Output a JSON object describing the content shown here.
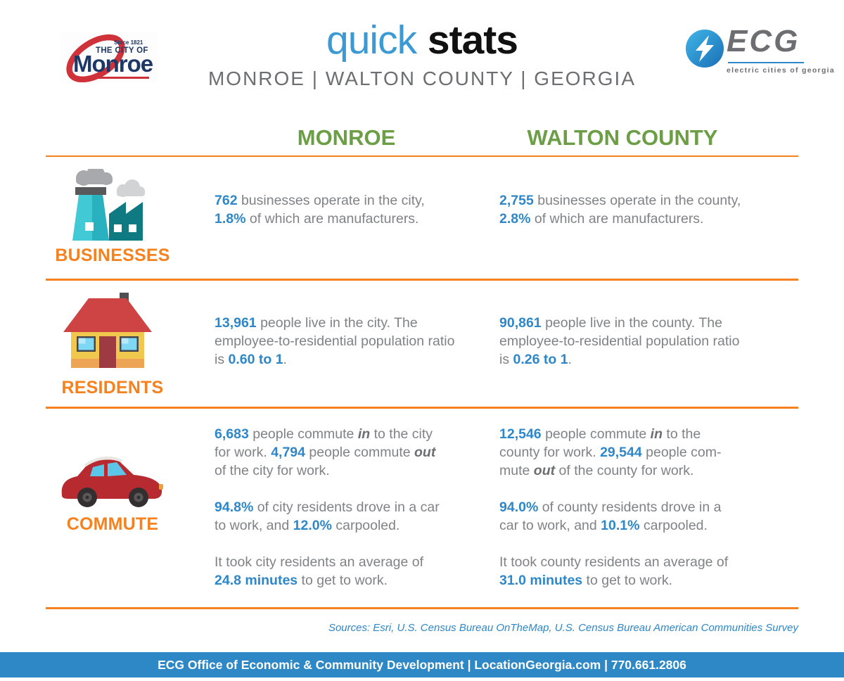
{
  "colors": {
    "accent_blue": "#2e87c8",
    "green": "#6b9e45",
    "orange": "#f5821f",
    "body_gray": "#808285",
    "dark_gray": "#6d6e71",
    "footer_blue": "#2e88c5",
    "title_black": "#111111",
    "monroe_navy": "#1d3866",
    "monroe_red": "#cf3339"
  },
  "header": {
    "monroe_logo": {
      "since": "Since 1821",
      "the_city_of": "THE CITY OF",
      "name": "Monroe",
      "swoosh_icon": "red-swoosh-icon"
    },
    "title": {
      "light": "quick",
      "bold": "stats"
    },
    "subtitle": "MONROE | WALTON COUNTY | GEORGIA",
    "ecg_logo": {
      "name": "ECG",
      "tagline": "electric cities of georgia",
      "bolt_icon": "lightning-bolt-icon"
    }
  },
  "columns": {
    "monroe": "MONROE",
    "walton": "WALTON COUNTY"
  },
  "sections": [
    {
      "label": "BUSINESSES",
      "icon": "factory-icon",
      "monroe": [
        [
          {
            "t": "762",
            "s": "num"
          },
          {
            "t": " businesses operate in the city,",
            "s": "body"
          },
          {
            "s": "br"
          },
          {
            "t": "1.8%",
            "s": "num"
          },
          {
            "t": " of which are manufacturers.",
            "s": "body"
          }
        ]
      ],
      "walton": [
        [
          {
            "t": "2,755",
            "s": "num"
          },
          {
            "t": " businesses operate in the county,",
            "s": "body"
          },
          {
            "s": "br"
          },
          {
            "t": "2.8%",
            "s": "num"
          },
          {
            "t": " of which are manufacturers.",
            "s": "body"
          }
        ]
      ]
    },
    {
      "label": "RESIDENTS",
      "icon": "house-icon",
      "monroe": [
        [
          {
            "t": "13,961",
            "s": "num"
          },
          {
            "t": " people live in the city. The",
            "s": "body"
          },
          {
            "s": "br"
          },
          {
            "t": "employee-to-residential population ratio",
            "s": "body"
          },
          {
            "s": "br"
          },
          {
            "t": "is ",
            "s": "body"
          },
          {
            "t": "0.60 to 1",
            "s": "num"
          },
          {
            "t": ".",
            "s": "body"
          }
        ]
      ],
      "walton": [
        [
          {
            "t": "90,861",
            "s": "num"
          },
          {
            "t": " people live in the county. The",
            "s": "body"
          },
          {
            "s": "br"
          },
          {
            "t": "employee-to-residential population ratio",
            "s": "body"
          },
          {
            "s": "br"
          },
          {
            "t": "is ",
            "s": "body"
          },
          {
            "t": "0.26 to 1",
            "s": "num"
          },
          {
            "t": ".",
            "s": "body"
          }
        ]
      ]
    },
    {
      "label": "COMMUTE",
      "icon": "car-icon",
      "monroe": [
        [
          {
            "t": "6,683",
            "s": "num"
          },
          {
            "t": " people commute ",
            "s": "body"
          },
          {
            "t": "in",
            "s": "em"
          },
          {
            "t": " to the city",
            "s": "body"
          },
          {
            "s": "br"
          },
          {
            "t": "for work. ",
            "s": "body"
          },
          {
            "t": "4,794",
            "s": "num"
          },
          {
            "t": " people commute ",
            "s": "body"
          },
          {
            "t": "out",
            "s": "em"
          },
          {
            "s": "br"
          },
          {
            "t": "of the city for work.",
            "s": "body"
          }
        ],
        [
          {
            "t": "94.8%",
            "s": "num"
          },
          {
            "t": " of city residents drove in a car",
            "s": "body"
          },
          {
            "s": "br"
          },
          {
            "t": "to work, and ",
            "s": "body"
          },
          {
            "t": "12.0%",
            "s": "num"
          },
          {
            "t": " carpooled.",
            "s": "body"
          }
        ],
        [
          {
            "t": "It took city residents an average of",
            "s": "body"
          },
          {
            "s": "br"
          },
          {
            "t": "24.8 minutes",
            "s": "num"
          },
          {
            "t": " to get to work.",
            "s": "body"
          }
        ]
      ],
      "walton": [
        [
          {
            "t": "12,546",
            "s": "num"
          },
          {
            "t": " people commute ",
            "s": "body"
          },
          {
            "t": "in",
            "s": "em"
          },
          {
            "t": " to the",
            "s": "body"
          },
          {
            "s": "br"
          },
          {
            "t": "county for work. ",
            "s": "body"
          },
          {
            "t": "29,544",
            "s": "num"
          },
          {
            "t": " people com-",
            "s": "body"
          },
          {
            "s": "br"
          },
          {
            "t": "mute ",
            "s": "body"
          },
          {
            "t": "out",
            "s": "em"
          },
          {
            "t": " of the county for work.",
            "s": "body"
          }
        ],
        [
          {
            "t": "94.0%",
            "s": "num"
          },
          {
            "t": " of county residents drove in a",
            "s": "body"
          },
          {
            "s": "br"
          },
          {
            "t": "car to work, and ",
            "s": "body"
          },
          {
            "t": "10.1%",
            "s": "num"
          },
          {
            "t": " carpooled.",
            "s": "body"
          }
        ],
        [
          {
            "t": "It took county residents an average of",
            "s": "body"
          },
          {
            "s": "br"
          },
          {
            "t": "31.0 minutes",
            "s": "num"
          },
          {
            "t": " to get to work.",
            "s": "body"
          }
        ]
      ]
    }
  ],
  "sources": "Sources: Esri, U.S. Census Bureau OnTheMap, U.S. Census Bureau American Communities Survey",
  "footer": "ECG Office of Economic & Community Development | LocationGeorgia.com | 770.661.2806"
}
